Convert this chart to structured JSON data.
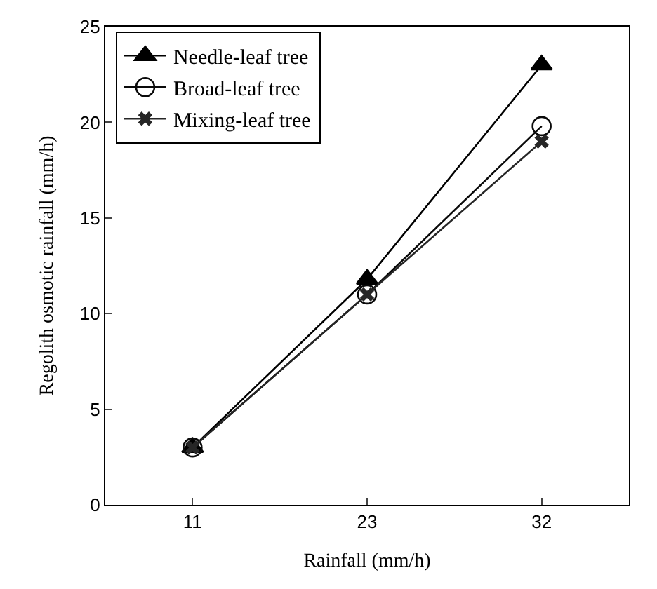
{
  "chart_data": {
    "type": "line",
    "xlabel": "Rainfall (mm/h)",
    "ylabel": "Regolith osmotic rainfall (mm/h)",
    "categories": [
      "11",
      "23",
      "32"
    ],
    "series": [
      {
        "name": "Needle-leaf tree",
        "color": "#000000",
        "marker": "triangle",
        "values": [
          3,
          11.8,
          23
        ]
      },
      {
        "name": "Broad-leaf tree",
        "color": "#0a0a0a",
        "marker": "circle",
        "values": [
          3,
          11,
          19.8
        ]
      },
      {
        "name": "Mixing-leaf tree",
        "color": "#262626",
        "marker": "cross",
        "values": [
          3,
          11,
          19
        ]
      }
    ],
    "ylim": [
      0,
      25
    ],
    "yticks": [
      0,
      5,
      10,
      15,
      20,
      25
    ],
    "legend": "top left",
    "line_style": "solid"
  }
}
